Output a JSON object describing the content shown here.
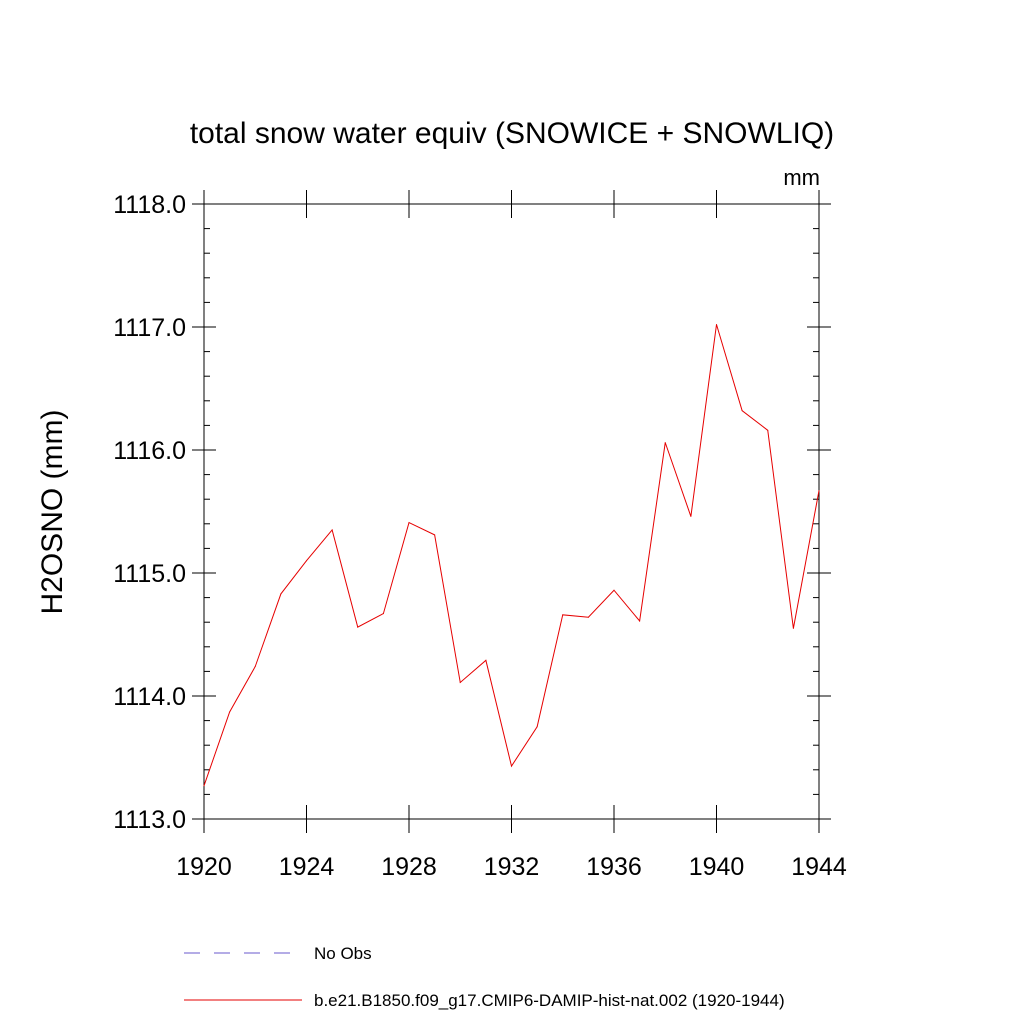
{
  "chart_data": {
    "type": "line",
    "title": "total snow water equiv (SNOWICE + SNOWLIQ)",
    "units": "mm",
    "ylabel": "H2OSNO  (mm)",
    "xlabel": "",
    "xlim": [
      1920,
      1944
    ],
    "ylim": [
      1113.0,
      1118.0
    ],
    "x_ticks": [
      1920,
      1924,
      1928,
      1932,
      1936,
      1940,
      1944
    ],
    "x_tick_labels": [
      "1920",
      "1924",
      "1928",
      "1932",
      "1936",
      "1940",
      "1944"
    ],
    "y_ticks": [
      1113.0,
      1114.0,
      1115.0,
      1116.0,
      1117.0,
      1118.0
    ],
    "y_tick_labels": [
      "1113.0",
      "1114.0",
      "1115.0",
      "1116.0",
      "1117.0",
      "1118.0"
    ],
    "grid": false,
    "legend_position": "bottom",
    "series": [
      {
        "name": "No Obs",
        "color": "#6a5acd",
        "style": "dashed",
        "x": [],
        "values": []
      },
      {
        "name": "b.e21.B1850.f09_g17.CMIP6-DAMIP-hist-nat.002 (1920-1944)",
        "color": "#e60000",
        "style": "solid",
        "x": [
          1920,
          1921,
          1922,
          1923,
          1924,
          1925,
          1926,
          1927,
          1928,
          1929,
          1930,
          1931,
          1932,
          1933,
          1934,
          1935,
          1936,
          1937,
          1938,
          1939,
          1940,
          1941,
          1942,
          1943,
          1944
        ],
        "values": [
          1113.27,
          1113.87,
          1114.24,
          1114.83,
          1115.1,
          1115.35,
          1114.56,
          1114.67,
          1115.41,
          1115.31,
          1114.11,
          1114.29,
          1113.43,
          1113.75,
          1114.66,
          1114.64,
          1114.86,
          1114.61,
          1116.06,
          1115.46,
          1117.02,
          1116.32,
          1116.16,
          1114.55,
          1115.67
        ]
      }
    ]
  }
}
